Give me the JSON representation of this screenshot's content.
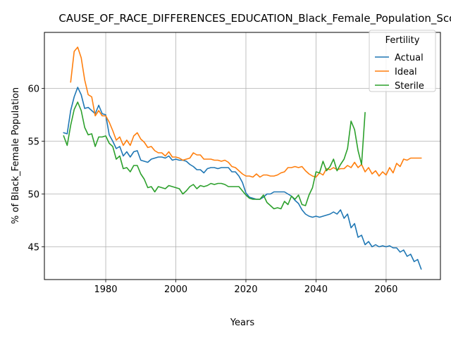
{
  "chart_data": {
    "type": "line",
    "title": "CAUSE_OF_RACE_DIFFERENCES_EDUCATION_Black_Female_Population_Scori",
    "xlabel": "Years",
    "ylabel": "% of Black_Female Population",
    "xlim": [
      1962.5,
      2075.5
    ],
    "ylim": [
      41.9,
      65.3
    ],
    "xticks": [
      1980,
      2000,
      2020,
      2040,
      2060
    ],
    "yticks": [
      45,
      50,
      55,
      60
    ],
    "grid": true,
    "legend": {
      "title": "Fertility",
      "position": "top-right"
    },
    "x": [
      1968,
      1969,
      1970,
      1971,
      1972,
      1973,
      1974,
      1975,
      1976,
      1977,
      1978,
      1979,
      1980,
      1981,
      1982,
      1983,
      1984,
      1985,
      1986,
      1987,
      1988,
      1989,
      1990,
      1991,
      1992,
      1993,
      1994,
      1995,
      1996,
      1997,
      1998,
      1999,
      2000,
      2001,
      2002,
      2003,
      2004,
      2005,
      2006,
      2007,
      2008,
      2009,
      2010,
      2011,
      2012,
      2013,
      2014,
      2015,
      2016,
      2017,
      2018,
      2019,
      2020,
      2021,
      2022,
      2023,
      2024,
      2025,
      2026,
      2027,
      2028,
      2029,
      2030,
      2031,
      2032,
      2033,
      2034,
      2035,
      2036,
      2037,
      2038,
      2039,
      2040,
      2041,
      2042,
      2043,
      2044,
      2045,
      2046,
      2047,
      2048,
      2049,
      2050,
      2051,
      2052,
      2053,
      2054,
      2055,
      2056,
      2057,
      2058,
      2059,
      2060,
      2061,
      2062,
      2063,
      2064,
      2065,
      2066,
      2067,
      2068,
      2069,
      2070
    ],
    "series": [
      {
        "name": "Actual",
        "color": "#1f77b4",
        "values": [
          55.8,
          55.7,
          57.9,
          59.2,
          60.1,
          59.4,
          58.1,
          58.2,
          57.9,
          57.6,
          58.4,
          57.6,
          57.5,
          55.6,
          55.0,
          54.3,
          54.5,
          53.6,
          54.0,
          53.5,
          54.0,
          54.1,
          53.2,
          53.1,
          53.0,
          53.3,
          53.4,
          53.5,
          53.5,
          53.4,
          53.6,
          53.2,
          53.3,
          53.2,
          53.2,
          53.1,
          52.8,
          52.6,
          52.3,
          52.3,
          52.0,
          52.4,
          52.5,
          52.5,
          52.4,
          52.5,
          52.5,
          52.5,
          52.1,
          52.1,
          51.7,
          51.1,
          50.1,
          49.7,
          49.6,
          49.5,
          49.5,
          49.7,
          50.0,
          50.0,
          50.2,
          50.2,
          50.2,
          50.2,
          50.0,
          49.8,
          49.4,
          49.1,
          48.5,
          48.1,
          47.9,
          47.8,
          47.9,
          47.8,
          47.9,
          48.0,
          48.1,
          48.3,
          48.1,
          48.5,
          47.7,
          48.1,
          46.8,
          47.2,
          45.9,
          46.1,
          45.2,
          45.5,
          45.0,
          45.2,
          45.0,
          45.1,
          45.0,
          45.1,
          44.9,
          44.9,
          44.5,
          44.7,
          44.1,
          44.3,
          43.6,
          43.8,
          42.9
        ]
      },
      {
        "name": "Ideal",
        "color": "#ff7f0e",
        "values": [
          null,
          null,
          60.6,
          63.5,
          63.9,
          62.9,
          60.8,
          59.4,
          59.2,
          57.4,
          57.9,
          57.4,
          57.4,
          56.8,
          56.0,
          55.1,
          55.4,
          54.6,
          55.1,
          54.6,
          55.5,
          55.8,
          55.2,
          54.9,
          54.4,
          54.5,
          54.1,
          53.9,
          53.9,
          53.6,
          54.0,
          53.5,
          53.5,
          53.4,
          53.2,
          53.3,
          53.4,
          53.9,
          53.7,
          53.7,
          53.3,
          53.3,
          53.3,
          53.2,
          53.2,
          53.1,
          53.2,
          53.0,
          52.6,
          52.5,
          52.2,
          51.9,
          51.7,
          51.7,
          51.6,
          51.9,
          51.6,
          51.8,
          51.8,
          51.7,
          51.7,
          51.8,
          52.0,
          52.1,
          52.5,
          52.5,
          52.6,
          52.5,
          52.6,
          52.2,
          51.9,
          51.7,
          51.6,
          52.0,
          51.8,
          52.4,
          52.3,
          52.5,
          52.3,
          52.4,
          52.4,
          52.7,
          52.5,
          53.0,
          52.5,
          52.8,
          52.1,
          52.5,
          51.9,
          52.2,
          51.7,
          52.1,
          51.8,
          52.5,
          52.0,
          52.9,
          52.6,
          53.3,
          53.2,
          53.4,
          53.4,
          53.4,
          53.4
        ]
      },
      {
        "name": "Sterile",
        "color": "#2ca02c",
        "values": [
          55.5,
          54.6,
          56.5,
          58.0,
          58.7,
          57.9,
          56.3,
          55.6,
          55.7,
          54.5,
          55.4,
          55.4,
          55.5,
          54.8,
          54.5,
          53.3,
          53.6,
          52.4,
          52.5,
          52.1,
          52.7,
          52.7,
          51.9,
          51.4,
          50.6,
          50.7,
          50.2,
          50.7,
          50.6,
          50.5,
          50.8,
          50.7,
          50.6,
          50.5,
          50.0,
          50.3,
          50.7,
          50.9,
          50.5,
          50.8,
          50.7,
          50.8,
          51.0,
          50.9,
          51.0,
          51.0,
          50.9,
          50.7,
          50.7,
          50.7,
          50.7,
          50.3,
          49.9,
          49.6,
          49.5,
          49.5,
          49.5,
          49.9,
          49.2,
          48.9,
          48.6,
          48.7,
          48.6,
          49.3,
          49.0,
          49.8,
          49.5,
          49.9,
          49.0,
          48.9,
          49.9,
          50.6,
          52.1,
          52.0,
          53.1,
          52.2,
          52.6,
          53.3,
          52.2,
          52.8,
          53.3,
          54.3,
          56.9,
          56.1,
          54.1,
          52.8,
          57.7,
          null,
          null,
          null,
          null,
          null,
          null,
          null,
          null,
          null,
          null,
          null,
          null,
          null,
          null,
          null,
          null
        ]
      }
    ]
  }
}
